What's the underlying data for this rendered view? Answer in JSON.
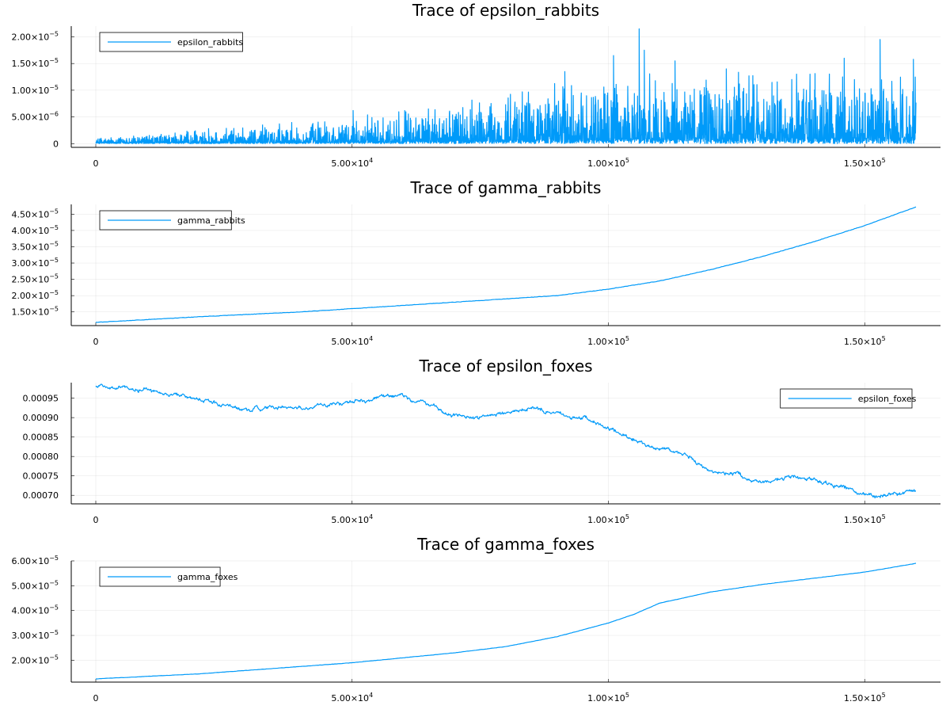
{
  "colors": {
    "series": "#009af9",
    "axis": "#000000",
    "background": "#ffffff"
  },
  "chart_data": [
    {
      "type": "line",
      "title": "Trace of epsilon_rabbits",
      "legend": {
        "entry": "epsilon_rabbits",
        "placement": "top-left"
      },
      "xlim": [
        -5000,
        165000
      ],
      "ylim": [
        -7e-07,
        2.2e-05
      ],
      "grid": true,
      "x_ticks": [
        {
          "value": 0,
          "label": "0"
        },
        {
          "value": 50000,
          "label": "5.00×10",
          "exp": "4"
        },
        {
          "value": 100000,
          "label": "1.00×10",
          "exp": "5"
        },
        {
          "value": 150000,
          "label": "1.50×10",
          "exp": "5"
        }
      ],
      "y_ticks": [
        {
          "value": 0,
          "label": "0"
        },
        {
          "value": 5e-06,
          "label": "5.00×10",
          "exp": "−6"
        },
        {
          "value": 1e-05,
          "label": "1.00×10",
          "exp": "−5"
        },
        {
          "value": 1.5e-05,
          "label": "1.50×10",
          "exp": "−5"
        },
        {
          "value": 2e-05,
          "label": "2.00×10",
          "exp": "−5"
        }
      ],
      "series": [
        {
          "name": "epsilon_rabbits",
          "style": "noise",
          "x_end": 160000,
          "base_level": [
            [
              0,
              2.5e-07
            ],
            [
              50000,
              5e-07
            ],
            [
              70000,
              9e-07
            ],
            [
              100000,
              1.6e-06
            ],
            [
              160000,
              1.8e-06
            ]
          ],
          "peak_level": [
            [
              0,
              1.2e-06
            ],
            [
              20000,
              2.5e-06
            ],
            [
              50000,
              5e-06
            ],
            [
              70000,
              8e-06
            ],
            [
              100000,
              1.3e-05
            ],
            [
              160000,
              1.4e-05
            ]
          ],
          "spikes": [
            [
              106000,
              2.15e-05
            ],
            [
              107000,
              1.75e-05
            ],
            [
              101000,
              1.65e-05
            ],
            [
              153000,
              1.95e-05
            ],
            [
              146000,
              1.6e-05
            ],
            [
              159500,
              1.58e-05
            ],
            [
              113000,
              1.55e-05
            ],
            [
              123000,
              1.4e-05
            ],
            [
              91500,
              1.35e-05
            ],
            [
              50200,
              6.2e-06
            ],
            [
              55000,
              4.3e-06
            ],
            [
              33000,
              3e-06
            ],
            [
              22000,
              2.8e-06
            ]
          ]
        }
      ]
    },
    {
      "type": "line",
      "title": "Trace of gamma_rabbits",
      "legend": {
        "entry": "gamma_rabbits",
        "placement": "top-left"
      },
      "xlim": [
        -5000,
        165000
      ],
      "ylim": [
        1.08e-05,
        4.8e-05
      ],
      "grid": true,
      "x_ticks": [
        {
          "value": 0,
          "label": "0"
        },
        {
          "value": 50000,
          "label": "5.00×10",
          "exp": "4"
        },
        {
          "value": 100000,
          "label": "1.00×10",
          "exp": "5"
        },
        {
          "value": 150000,
          "label": "1.50×10",
          "exp": "5"
        }
      ],
      "y_ticks": [
        {
          "value": 1.5e-05,
          "label": "1.50×10",
          "exp": "−5"
        },
        {
          "value": 2e-05,
          "label": "2.00×10",
          "exp": "−5"
        },
        {
          "value": 2.5e-05,
          "label": "2.50×10",
          "exp": "−5"
        },
        {
          "value": 3e-05,
          "label": "3.00×10",
          "exp": "−5"
        },
        {
          "value": 3.5e-05,
          "label": "3.50×10",
          "exp": "−5"
        },
        {
          "value": 4e-05,
          "label": "4.00×10",
          "exp": "−5"
        },
        {
          "value": 4.5e-05,
          "label": "4.50×10",
          "exp": "−5"
        }
      ],
      "series": [
        {
          "name": "gamma_rabbits",
          "style": "smooth",
          "jitter": 1.2e-07,
          "x": [
            0,
            20000,
            40000,
            50000,
            60000,
            70000,
            80000,
            90000,
            100000,
            110000,
            120000,
            130000,
            140000,
            150000,
            160000
          ],
          "y": [
            1.18e-05,
            1.35e-05,
            1.5e-05,
            1.6e-05,
            1.7e-05,
            1.8e-05,
            1.9e-05,
            2e-05,
            2.2e-05,
            2.45e-05,
            2.8e-05,
            3.2e-05,
            3.65e-05,
            4.15e-05,
            4.72e-05
          ]
        }
      ]
    },
    {
      "type": "line",
      "title": "Trace of epsilon_foxes",
      "legend": {
        "entry": "epsilon_foxes",
        "placement": "top-right"
      },
      "xlim": [
        -5000,
        165000
      ],
      "ylim": [
        0.000678,
        0.00099
      ],
      "grid": true,
      "x_ticks": [
        {
          "value": 0,
          "label": "0"
        },
        {
          "value": 50000,
          "label": "5.00×10",
          "exp": "4"
        },
        {
          "value": 100000,
          "label": "1.00×10",
          "exp": "5"
        },
        {
          "value": 150000,
          "label": "1.50×10",
          "exp": "5"
        }
      ],
      "y_ticks": [
        {
          "value": 0.0007,
          "label": "0.00070"
        },
        {
          "value": 0.00075,
          "label": "0.00075"
        },
        {
          "value": 0.0008,
          "label": "0.00080"
        },
        {
          "value": 0.00085,
          "label": "0.00085"
        },
        {
          "value": 0.0009,
          "label": "0.00090"
        },
        {
          "value": 0.00095,
          "label": "0.00095"
        }
      ],
      "series": [
        {
          "name": "epsilon_foxes",
          "style": "rough",
          "jitter": 4e-06,
          "x": [
            0,
            5000,
            10000,
            15000,
            20000,
            25000,
            30000,
            35000,
            40000,
            45000,
            50000,
            55000,
            60000,
            65000,
            70000,
            75000,
            80000,
            85000,
            90000,
            95000,
            100000,
            105000,
            110000,
            115000,
            120000,
            125000,
            130000,
            135000,
            140000,
            145000,
            150000,
            155000,
            160000
          ],
          "y": [
            0.00098,
            0.000975,
            0.00097,
            0.00096,
            0.00095,
            0.00093,
            0.00092,
            0.000925,
            0.000925,
            0.000935,
            0.00094,
            0.00095,
            0.000955,
            0.00093,
            0.000905,
            0.0009,
            0.000915,
            0.000925,
            0.00091,
            0.0009,
            0.00087,
            0.000845,
            0.00082,
            0.00081,
            0.00076,
            0.000755,
            0.00073,
            0.000745,
            0.00074,
            0.000725,
            0.0007,
            0.000705,
            0.00071
          ]
        }
      ]
    },
    {
      "type": "line",
      "title": "Trace of gamma_foxes",
      "legend": {
        "entry": "gamma_foxes",
        "placement": "top-left"
      },
      "xlim": [
        -5000,
        165000
      ],
      "ylim": [
        1.12e-05,
        6e-05
      ],
      "grid": true,
      "x_ticks": [
        {
          "value": 0,
          "label": "0"
        },
        {
          "value": 50000,
          "label": "5.00×10",
          "exp": "4"
        },
        {
          "value": 100000,
          "label": "1.00×10",
          "exp": "5"
        },
        {
          "value": 150000,
          "label": "1.50×10",
          "exp": "5"
        }
      ],
      "y_ticks": [
        {
          "value": 2e-05,
          "label": "2.00×10",
          "exp": "−5"
        },
        {
          "value": 3e-05,
          "label": "3.00×10",
          "exp": "−5"
        },
        {
          "value": 4e-05,
          "label": "4.00×10",
          "exp": "−5"
        },
        {
          "value": 5e-05,
          "label": "5.00×10",
          "exp": "−5"
        },
        {
          "value": 6e-05,
          "label": "6.00×10",
          "exp": "−5"
        }
      ],
      "series": [
        {
          "name": "gamma_foxes",
          "style": "smooth",
          "jitter": 1e-07,
          "x": [
            0,
            20000,
            40000,
            50000,
            60000,
            70000,
            80000,
            90000,
            100000,
            105000,
            110000,
            120000,
            130000,
            140000,
            150000,
            160000
          ],
          "y": [
            1.25e-05,
            1.45e-05,
            1.75e-05,
            1.9e-05,
            2.1e-05,
            2.3e-05,
            2.55e-05,
            2.95e-05,
            3.5e-05,
            3.85e-05,
            4.3e-05,
            4.75e-05,
            5.05e-05,
            5.3e-05,
            5.55e-05,
            5.9e-05
          ]
        }
      ]
    }
  ]
}
